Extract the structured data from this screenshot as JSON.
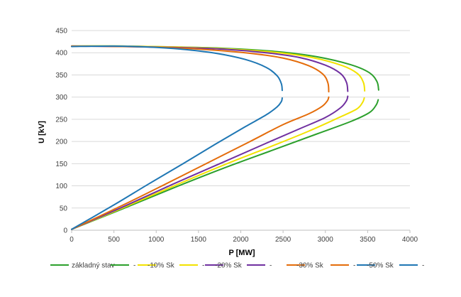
{
  "chart_data": {
    "type": "line",
    "title": "",
    "xlabel": "P [MW]",
    "ylabel": "U [kV]",
    "xlim": [
      0,
      4000
    ],
    "ylim": [
      0,
      450
    ],
    "xticks": [
      0,
      500,
      1000,
      1500,
      2000,
      2500,
      3000,
      3500,
      4000
    ],
    "yticks": [
      0,
      50,
      100,
      150,
      200,
      250,
      300,
      350,
      400,
      450
    ],
    "grid": "horizontal",
    "legend_position": "bottom",
    "series": [
      {
        "name": "základný stav",
        "color": "#2ca02c",
        "x": [
          0,
          600,
          1200,
          1800,
          2400,
          2900,
          3300,
          3520,
          3610,
          3630
        ],
        "y": [
          415,
          415,
          413,
          410,
          403,
          391,
          373,
          355,
          335,
          316
        ]
      },
      {
        "name": "-",
        "color": "#2ca02c",
        "x": [
          0,
          600,
          1200,
          1800,
          2400,
          2900,
          3300,
          3520,
          3600,
          3625
        ],
        "y": [
          2,
          48,
          95,
          140,
          182,
          217,
          245,
          265,
          282,
          294
        ]
      },
      {
        "name": "-10% Sk",
        "color": "#f2e200",
        "x": [
          0,
          600,
          1200,
          1800,
          2400,
          2850,
          3200,
          3380,
          3450,
          3465
        ],
        "y": [
          415,
          415,
          413,
          409,
          401,
          389,
          371,
          353,
          333,
          314
        ]
      },
      {
        "name": "-",
        "color": "#f2e200",
        "x": [
          0,
          600,
          1200,
          1800,
          2400,
          2800,
          3150,
          3370,
          3440,
          3460
        ],
        "y": [
          2,
          50,
          99,
          147,
          192,
          223,
          253,
          273,
          288,
          298
        ]
      },
      {
        "name": "-20% Sk",
        "color": "#7030a0",
        "x": [
          0,
          600,
          1200,
          1800,
          2300,
          2700,
          3000,
          3180,
          3250,
          3265
        ],
        "y": [
          415,
          414,
          412,
          408,
          400,
          389,
          372,
          353,
          333,
          313
        ]
      },
      {
        "name": "-",
        "color": "#7030a0",
        "x": [
          0,
          600,
          1200,
          1800,
          2300,
          2700,
          3000,
          3180,
          3250,
          3265
        ],
        "y": [
          2,
          52,
          104,
          154,
          196,
          229,
          254,
          276,
          292,
          302
        ]
      },
      {
        "name": "-30% Sk",
        "color": "#e46c0a",
        "x": [
          0,
          600,
          1100,
          1600,
          2100,
          2500,
          2800,
          2970,
          3030,
          3040
        ],
        "y": [
          415,
          414,
          412,
          407,
          399,
          388,
          371,
          352,
          332,
          312
        ]
      },
      {
        "name": "-",
        "color": "#e46c0a",
        "x": [
          0,
          600,
          1100,
          1600,
          2100,
          2500,
          2800,
          2960,
          3025,
          3040
        ],
        "y": [
          2,
          56,
          103,
          151,
          199,
          238,
          262,
          279,
          292,
          300
        ]
      },
      {
        "name": "-50% Sk",
        "color": "#1f77b4",
        "x": [
          0,
          500,
          900,
          1300,
          1700,
          2050,
          2300,
          2430,
          2480,
          2490
        ],
        "y": [
          414,
          415,
          413,
          408,
          399,
          385,
          367,
          348,
          330,
          315
        ]
      },
      {
        "name": "-",
        "color": "#1f77b4",
        "x": [
          0,
          500,
          900,
          1300,
          1700,
          2050,
          2300,
          2430,
          2480,
          2490
        ],
        "y": [
          2,
          57,
          103,
          148,
          194,
          233,
          260,
          278,
          290,
          298
        ]
      }
    ]
  }
}
